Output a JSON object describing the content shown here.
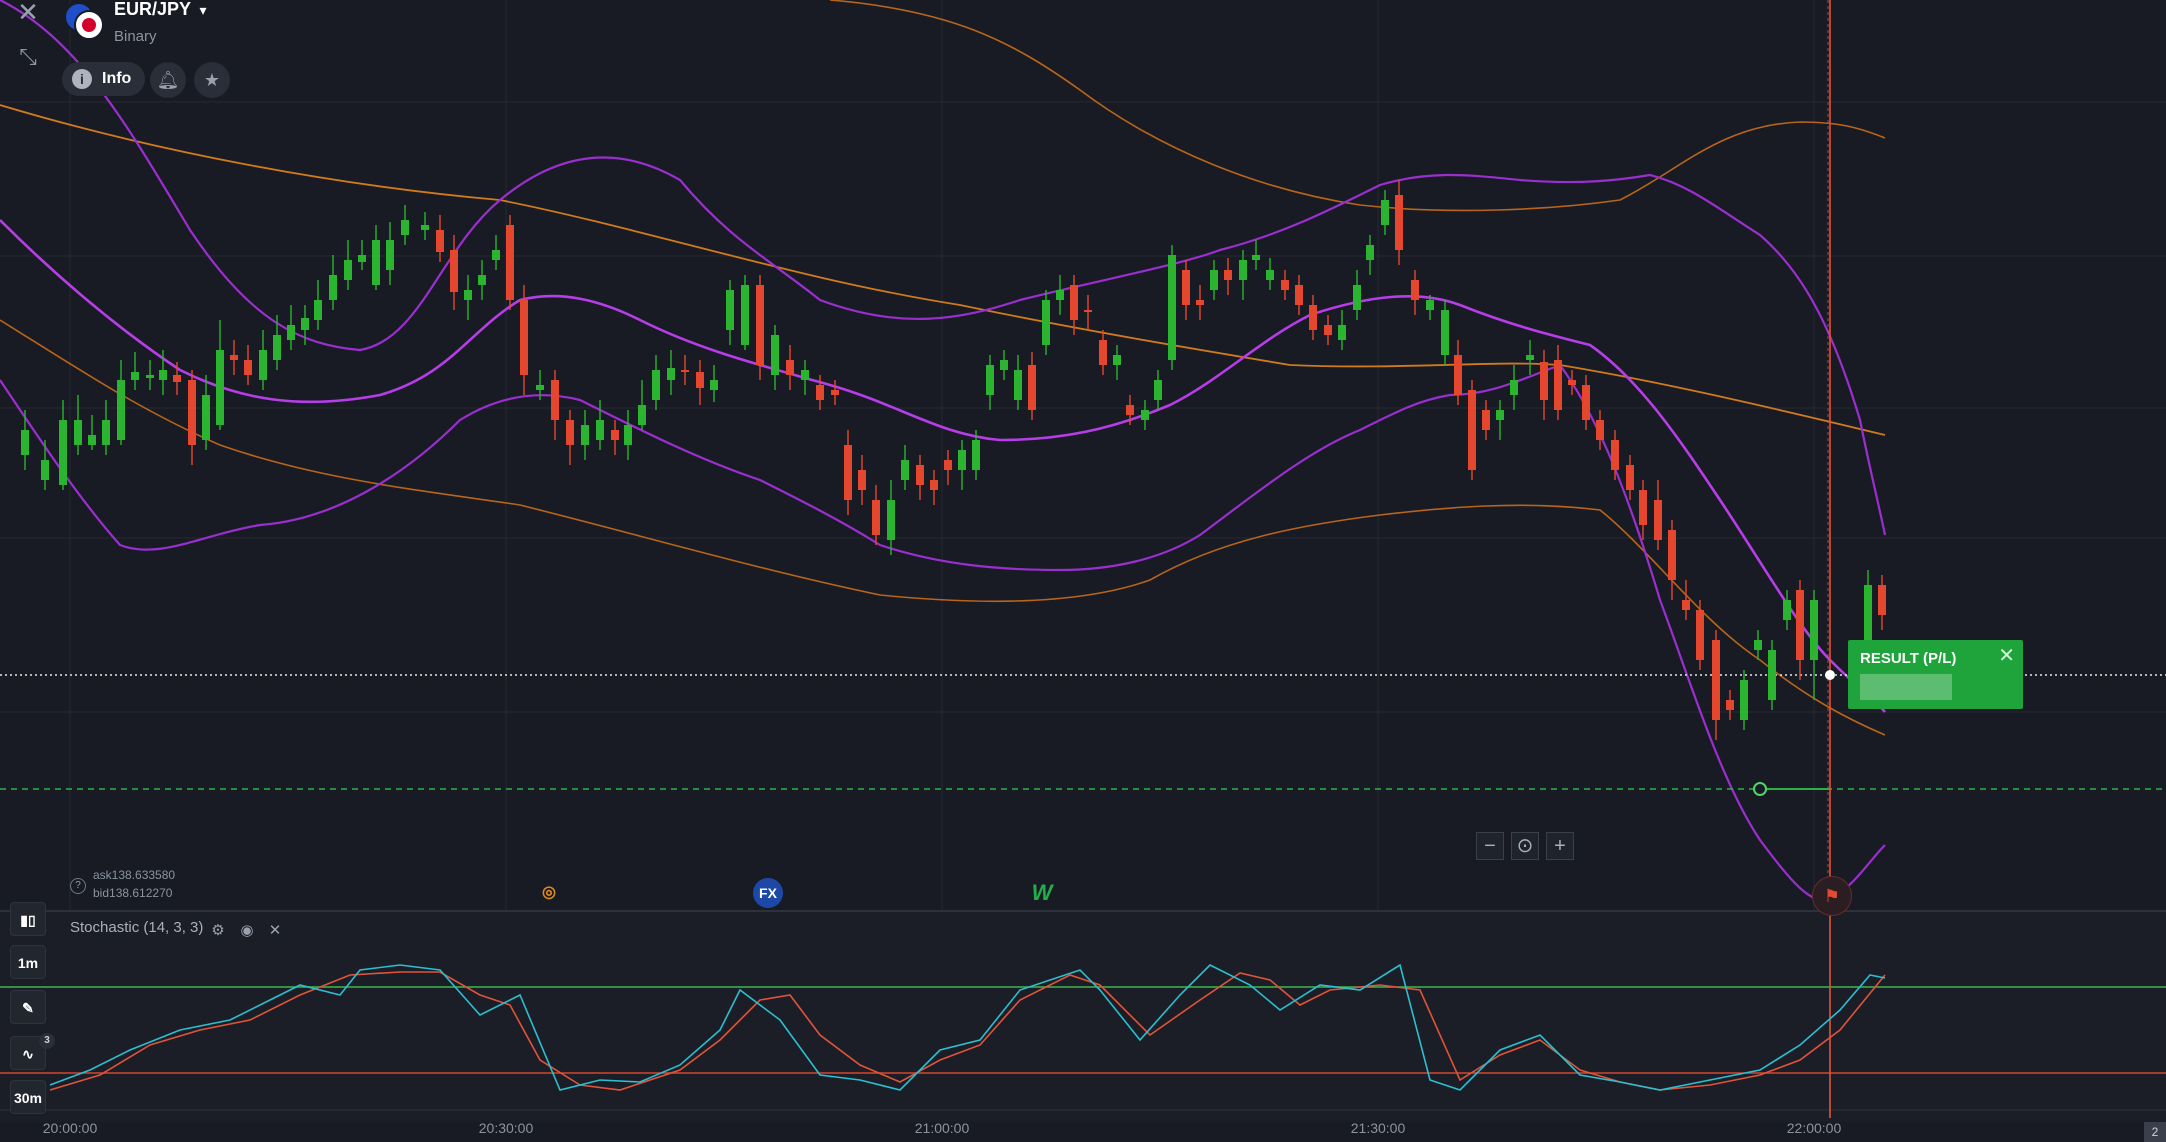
{
  "header": {
    "close_icon": "close-icon",
    "shrink_icon": "shrink-icon",
    "asset_name": "EUR/JPY",
    "asset_type": "Binary",
    "info_label": "Info",
    "info_icon": "i"
  },
  "quote": {
    "ask": "ask138.633580",
    "bid": "bid138.612270"
  },
  "result": {
    "label": "RESULT (P/L)",
    "close": "✕"
  },
  "zoom": {
    "minus": "−",
    "center": "⊙",
    "plus": "+"
  },
  "news_icons": {
    "first": "◎",
    "second": "FX",
    "third": "W"
  },
  "sidebar": {
    "chart_type_icon": "candles-icon",
    "timeframe": "1m",
    "draw_icon": "✎",
    "indicators_badge": "3",
    "expiration": "30m"
  },
  "stochastic": {
    "label": "Stochastic (14, 3, 3)",
    "settings_icon": "⚙",
    "visible_icon": "◉",
    "remove_icon": "✕"
  },
  "time_axis": [
    "20:00:00",
    "20:30:00",
    "21:00:00",
    "21:30:00",
    "22:00:00"
  ],
  "corner_label": "2",
  "colors": {
    "background": "#181b23",
    "bull_candle": "#2ab42f",
    "bear_candle": "#e5472e",
    "bollinger_purple": "#a033d6",
    "bollinger_orange": "#c9711b",
    "stoch_k": "#2bbfd1",
    "stoch_d": "#e0543a",
    "result_green": "#1ea43a",
    "expiry_line": "#e0553a"
  }
}
